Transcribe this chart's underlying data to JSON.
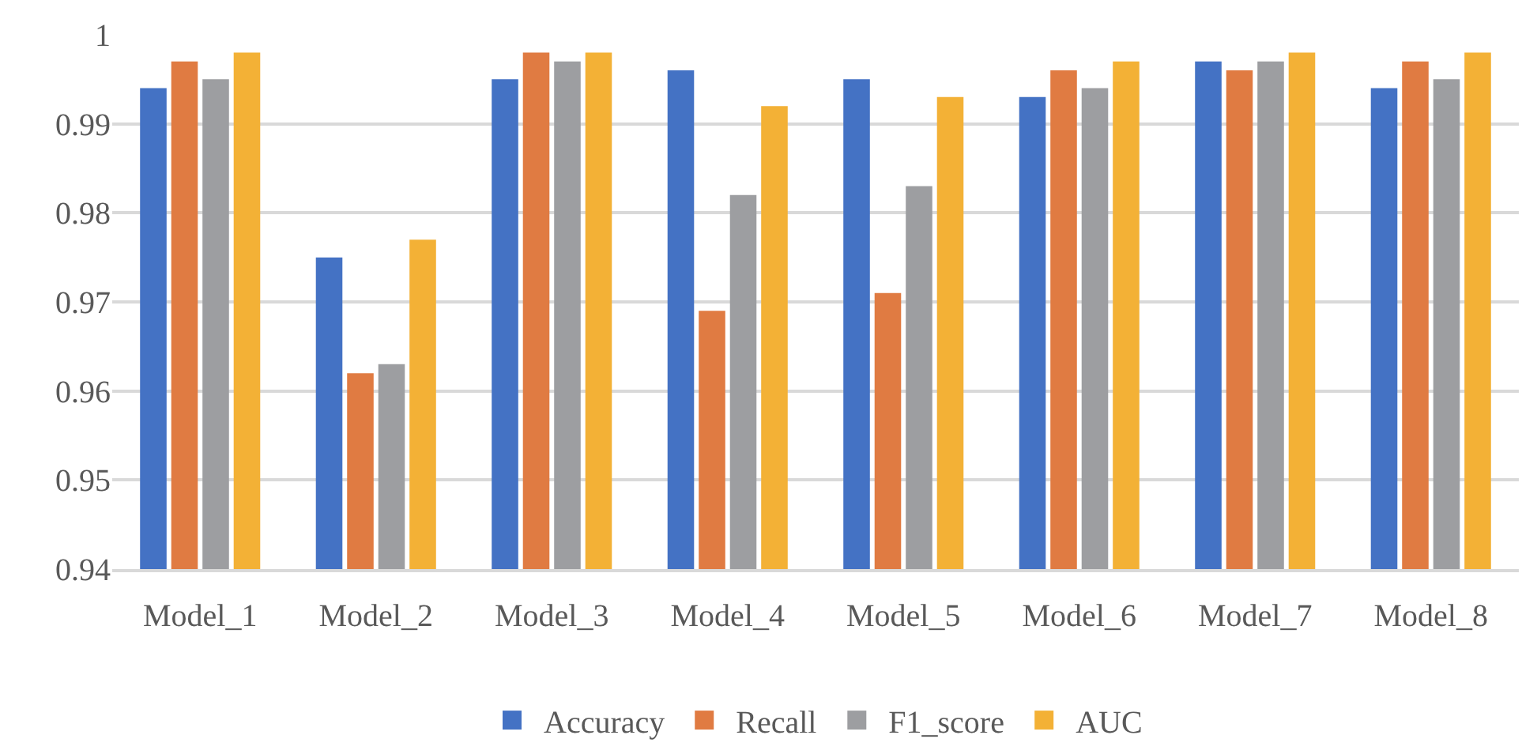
{
  "chart_data": {
    "type": "bar",
    "categories": [
      "Model_1",
      "Model_2",
      "Model_3",
      "Model_4",
      "Model_5",
      "Model_6",
      "Model_7",
      "Model_8"
    ],
    "series": [
      {
        "name": "Accuracy",
        "color": "#4472c4",
        "values": [
          0.994,
          0.975,
          0.995,
          0.996,
          0.995,
          0.993,
          0.997,
          0.994
        ]
      },
      {
        "name": "Recall",
        "color": "#e07b42",
        "values": [
          0.997,
          0.962,
          0.998,
          0.969,
          0.971,
          0.996,
          0.996,
          0.997
        ]
      },
      {
        "name": "F1_score",
        "color": "#9d9ea1",
        "values": [
          0.995,
          0.963,
          0.997,
          0.982,
          0.983,
          0.994,
          0.997,
          0.995
        ]
      },
      {
        "name": "AUC",
        "color": "#f3b136",
        "values": [
          0.998,
          0.977,
          0.998,
          0.992,
          0.993,
          0.997,
          0.998,
          0.998
        ]
      }
    ],
    "ylim": [
      0.94,
      1
    ],
    "yticks": [
      0.94,
      0.95,
      0.96,
      0.97,
      0.98,
      0.99,
      1
    ],
    "grid": "y",
    "legend": "bottom"
  }
}
